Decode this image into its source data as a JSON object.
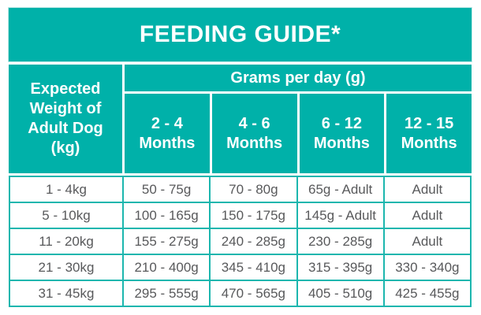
{
  "colors": {
    "teal": "#00b1a9",
    "gridline": "#1cb6ae",
    "text_gray": "#58595b"
  },
  "title": "FEEDING GUIDE*",
  "table": {
    "row_header_label": "Expected Weight of Adult Dog (kg)",
    "group_header": "Grams per day (g)",
    "columns": [
      "2 - 4 Months",
      "4 - 6 Months",
      "6 - 12 Months",
      "12 - 15 Months"
    ],
    "rows": [
      {
        "weight": "1 - 4kg",
        "values": [
          "50 - 75g",
          "70 - 80g",
          "65g - Adult",
          "Adult"
        ]
      },
      {
        "weight": "5 - 10kg",
        "values": [
          "100 - 165g",
          "150 - 175g",
          "145g - Adult",
          "Adult"
        ]
      },
      {
        "weight": "11 - 20kg",
        "values": [
          "155 - 275g",
          "240 - 285g",
          "230 - 285g",
          "Adult"
        ]
      },
      {
        "weight": "21 - 30kg",
        "values": [
          "210 - 400g",
          "345 - 410g",
          "315 - 395g",
          "330 - 340g"
        ]
      },
      {
        "weight": "31 - 45kg",
        "values": [
          "295 - 555g",
          "470 - 565g",
          "405 - 510g",
          "425 - 455g"
        ]
      }
    ]
  }
}
